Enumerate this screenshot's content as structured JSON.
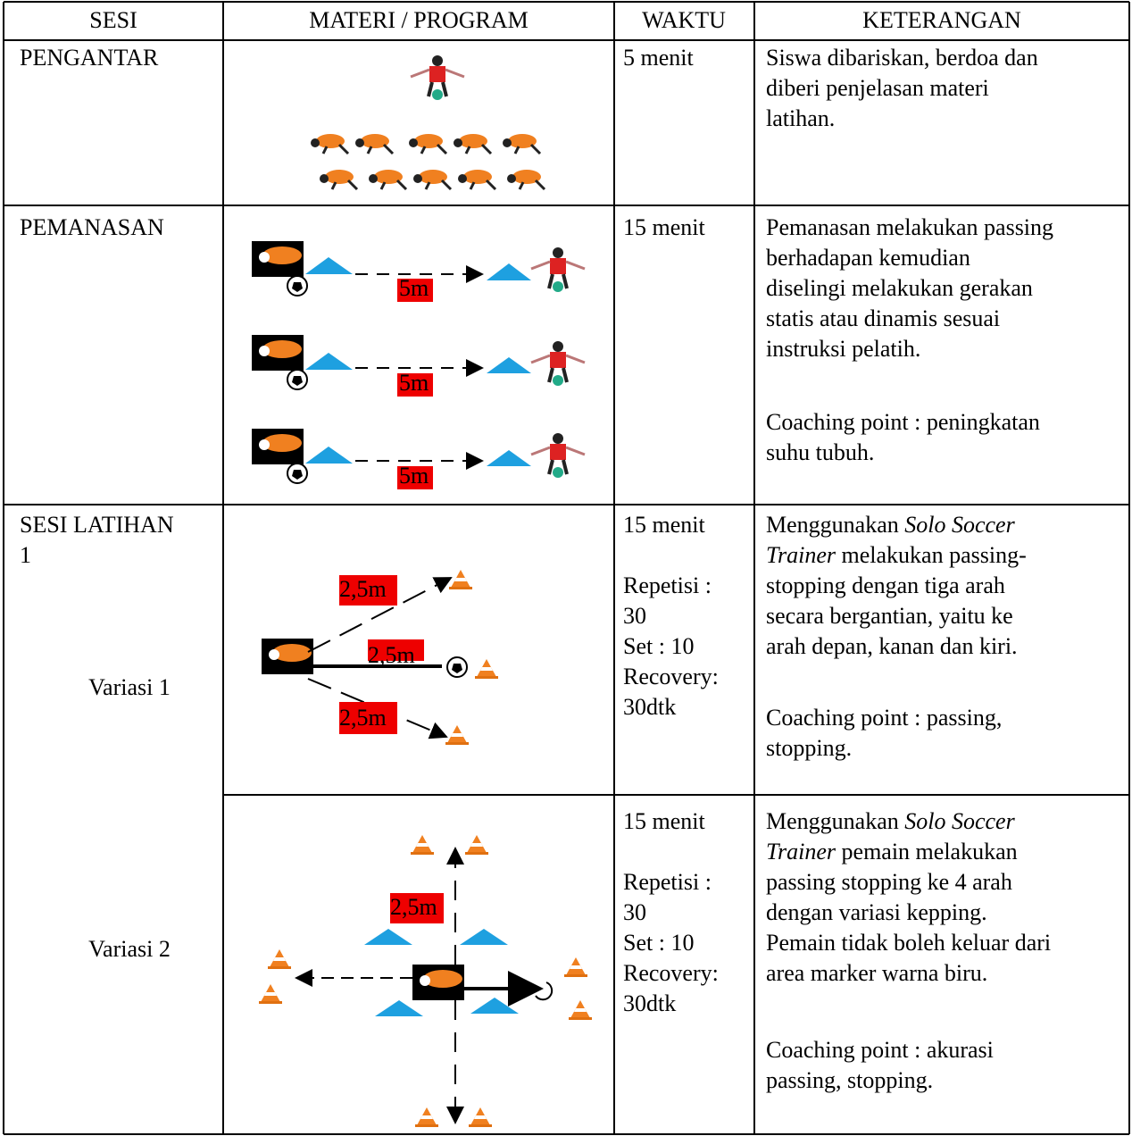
{
  "table": {
    "header": [
      "SESI",
      "MATERI / PROGRAM",
      "WAKTU",
      "KETERANGAN"
    ],
    "rows": [
      {
        "sesi": [
          "PENGANTAR"
        ],
        "waktu": [
          [
            "5 menit"
          ]
        ],
        "keterangan": [
          [
            "Siswa dibariskan, berdoa dan",
            "diberi penjelasan materi",
            "latihan."
          ]
        ]
      },
      {
        "sesi": [
          "PEMANASAN"
        ],
        "materi_labels": [
          "5m",
          "5m",
          "5m"
        ],
        "waktu": [
          [
            "15 menit"
          ]
        ],
        "keterangan": [
          [
            "Pemanasan melakukan passing",
            "berhadapan kemudian",
            "diselingi melakukan gerakan",
            "statis atau dinamis sesuai",
            "instruksi pelatih."
          ],
          [
            "Coaching point : peningkatan",
            "suhu tubuh."
          ]
        ]
      },
      {
        "sesi": [
          "SESI LATIHAN",
          "1"
        ],
        "variasi": "Variasi 1",
        "materi_labels": [
          "2,5m",
          "2,5m",
          "2,5m"
        ],
        "waktu": [
          [
            "15 menit"
          ],
          [
            "Repetisi :",
            "30",
            "Set : 10",
            "Recovery:",
            "30dtk"
          ]
        ],
        "keterangan": [
          [
            [
              "Menggunakan ",
              {
                "text": "Solo Soccer",
                "italic": true
              }
            ],
            [
              {
                "text": "Trainer",
                "italic": true
              },
              " melakukan passing-"
            ],
            "stopping dengan tiga arah",
            "secara bergantian, yaitu ke",
            "arah depan, kanan dan kiri."
          ],
          [
            "Coaching point : passing,",
            "stopping."
          ]
        ]
      },
      {
        "variasi": "Variasi 2",
        "materi_labels": [
          "2,5m"
        ],
        "waktu": [
          [
            "15 menit"
          ],
          [
            "Repetisi :",
            "30",
            "Set : 10",
            "Recovery:",
            "30dtk"
          ]
        ],
        "keterangan": [
          [
            [
              "Menggunakan ",
              {
                "text": "Solo Soccer",
                "italic": true
              }
            ],
            [
              {
                "text": "Trainer",
                "italic": true
              },
              " pemain melakukan"
            ],
            "passing stopping ke 4 arah",
            "dengan variasi kepping.",
            "Pemain tidak boleh keluar dari",
            "area marker warna biru."
          ],
          [
            "Coaching point : akurasi",
            "passing, stopping."
          ]
        ]
      }
    ]
  }
}
